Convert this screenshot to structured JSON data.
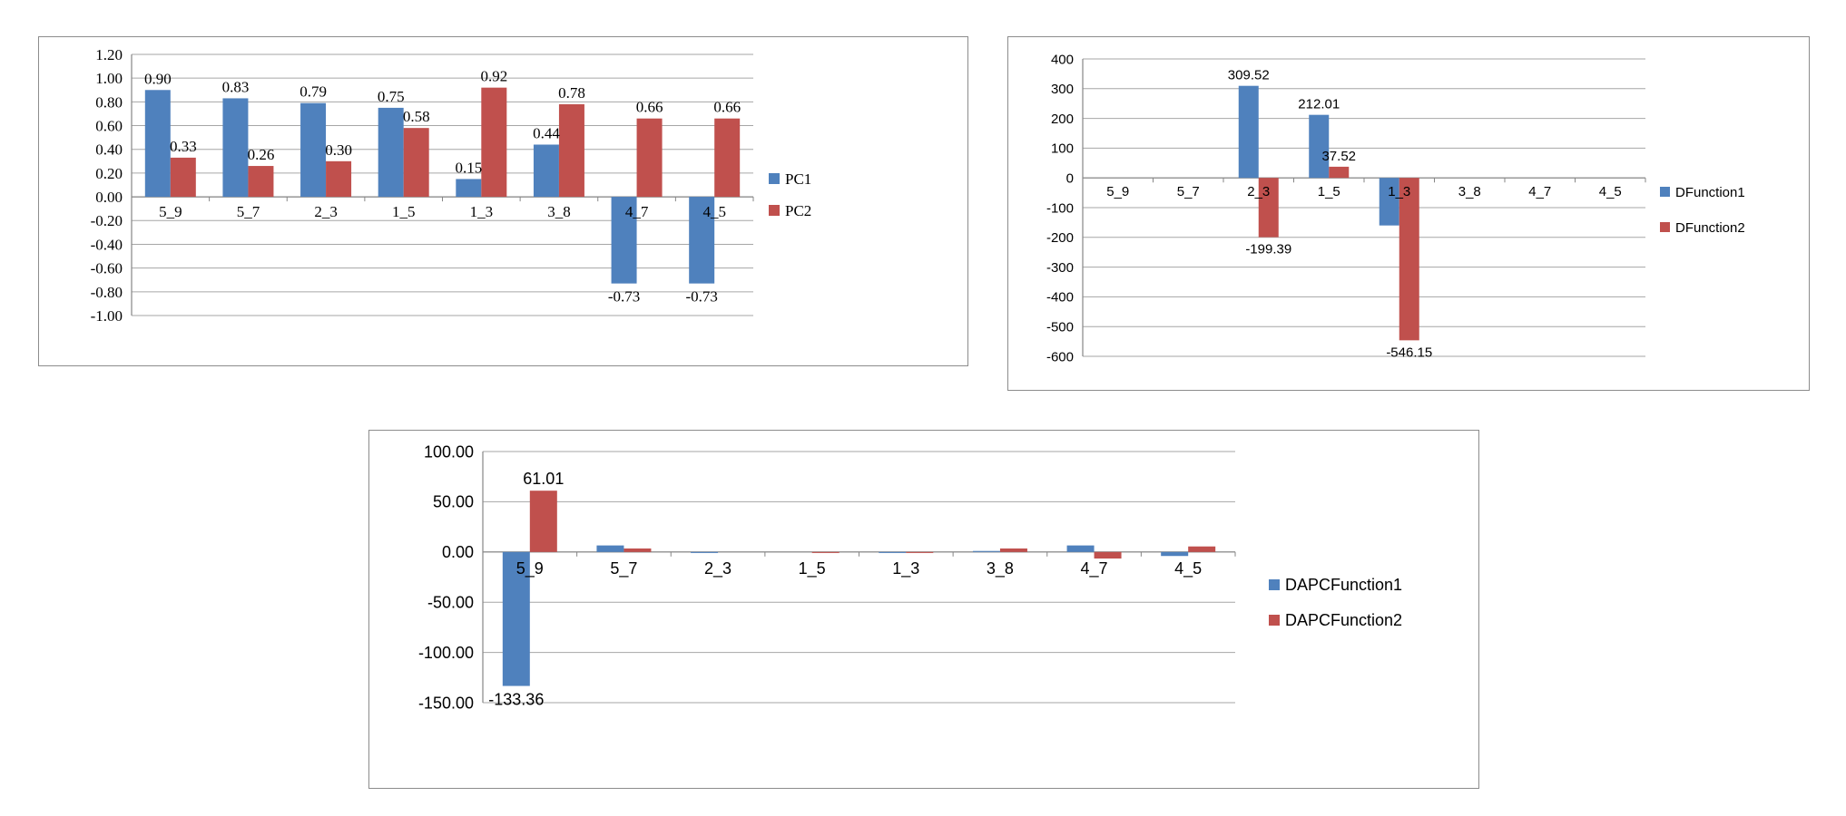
{
  "chart_data": [
    {
      "id": "pc",
      "type": "bar",
      "categories": [
        "5_9",
        "5_7",
        "2_3",
        "1_5",
        "1_3",
        "3_8",
        "4_7",
        "4_5"
      ],
      "series": [
        {
          "name": "PC1",
          "values": [
            0.9,
            0.83,
            0.79,
            0.75,
            0.15,
            0.44,
            -0.73,
            -0.73
          ],
          "labels": [
            "0.90",
            "0.83",
            "0.79",
            "0.75",
            "0.15",
            "0.44",
            "-0.73",
            "-0.73"
          ],
          "color": "#4f81bd"
        },
        {
          "name": "PC2",
          "values": [
            0.33,
            0.26,
            0.3,
            0.58,
            0.92,
            0.78,
            0.66,
            0.66
          ],
          "labels": [
            "0.33",
            "0.26",
            "0.30",
            "0.58",
            "0.92",
            "0.78",
            "0.66",
            "0.66"
          ],
          "color": "#c0504d"
        }
      ],
      "yticks": [
        "1.20",
        "1.00",
        "0.80",
        "0.60",
        "0.40",
        "0.20",
        "0.00",
        "-0.20",
        "-0.40",
        "-0.60",
        "-0.80",
        "-1.00"
      ],
      "ylim": [
        -1.0,
        1.2
      ],
      "grid": true,
      "legend": "right"
    },
    {
      "id": "df",
      "type": "bar",
      "categories": [
        "5_9",
        "5_7",
        "2_3",
        "1_5",
        "1_3",
        "3_8",
        "4_7",
        "4_5"
      ],
      "series": [
        {
          "name": "DFunction1",
          "values": [
            0,
            0,
            309.52,
            212.01,
            -160,
            0,
            0,
            0
          ],
          "labels": [
            "",
            "",
            "309.52",
            "212.01",
            "",
            "",
            "",
            ""
          ],
          "color": "#4f81bd"
        },
        {
          "name": "DFunction2",
          "values": [
            0,
            0,
            -199.39,
            37.52,
            -546.15,
            0,
            0,
            0
          ],
          "labels": [
            "",
            "",
            "-199.39",
            "37.52",
            "-546.15",
            "",
            "",
            ""
          ],
          "color": "#c0504d"
        }
      ],
      "yticks": [
        "400",
        "300",
        "200",
        "100",
        "0",
        "-100",
        "-200",
        "-300",
        "-400",
        "-500",
        "-600"
      ],
      "ylim": [
        -600,
        400
      ],
      "grid": true,
      "legend": "right"
    },
    {
      "id": "dapc",
      "type": "bar",
      "categories": [
        "5_9",
        "5_7",
        "2_3",
        "1_5",
        "1_3",
        "3_8",
        "4_7",
        "4_5"
      ],
      "series": [
        {
          "name": "DAPCFunction1",
          "values": [
            -133.36,
            6.5,
            -1.0,
            0.0,
            -1.0,
            1.0,
            6.5,
            -4.0
          ],
          "labels": [
            "-133.36",
            "",
            "",
            "",
            "",
            "",
            "",
            ""
          ],
          "color": "#4f81bd"
        },
        {
          "name": "DAPCFunction2",
          "values": [
            61.01,
            3.5,
            0.0,
            -1.0,
            -1.0,
            3.5,
            -6.5,
            5.5
          ],
          "labels": [
            "61.01",
            "",
            "",
            "",
            "",
            "",
            "",
            ""
          ],
          "color": "#c0504d"
        }
      ],
      "yticks": [
        "100.00",
        "50.00",
        "0.00",
        "-50.00",
        "-100.00",
        "-150.00"
      ],
      "ylim": [
        -150,
        100
      ],
      "grid": true,
      "legend": "right"
    }
  ]
}
